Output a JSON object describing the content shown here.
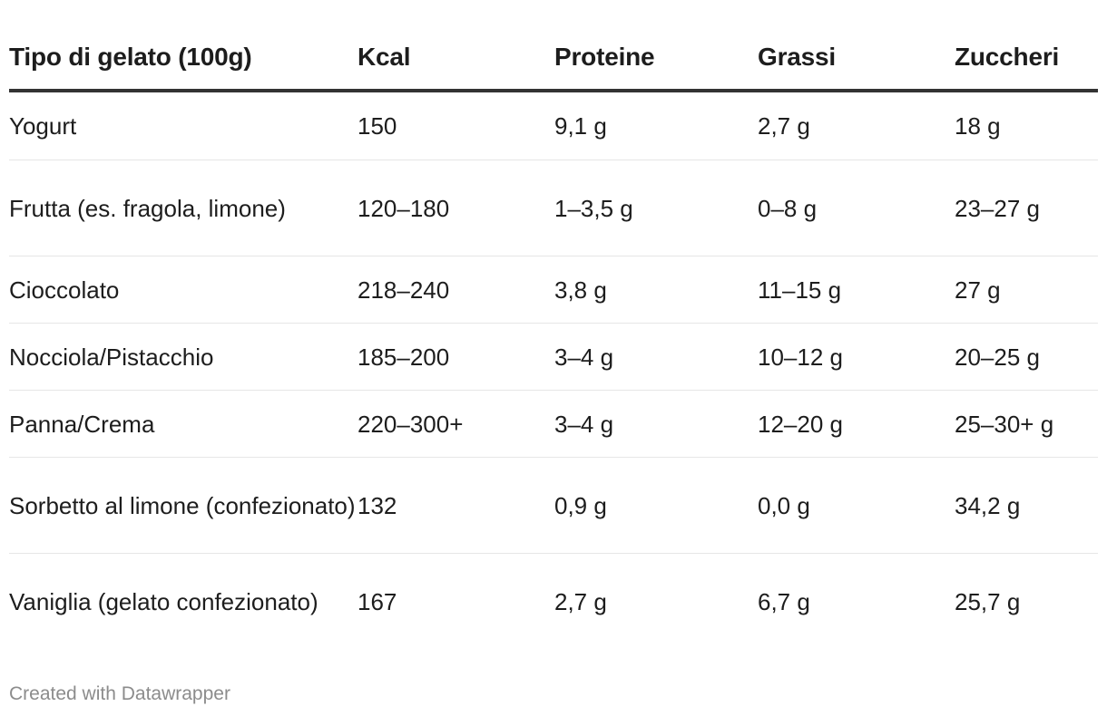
{
  "chart_data": {
    "type": "table",
    "columns": [
      "Tipo di gelato (100g)",
      "Kcal",
      "Proteine",
      "Grassi",
      "Zuccheri"
    ],
    "rows": [
      [
        "Yogurt",
        "150",
        "9,1 g",
        "2,7 g",
        "18 g"
      ],
      [
        "Frutta (es. fragola, limone)",
        "120–180",
        "1–3,5 g",
        "0–8 g",
        "23–27 g"
      ],
      [
        "Cioccolato",
        "218–240",
        "3,8 g",
        "11–15 g",
        "27 g"
      ],
      [
        "Nocciola/Pistacchio",
        "185–200",
        "3–4 g",
        "10–12 g",
        "20–25 g"
      ],
      [
        "Panna/Crema",
        "220–300+",
        "3–4 g",
        "12–20 g",
        "25–30+ g"
      ],
      [
        "Sorbetto al limone (confezionato)",
        "132",
        "0,9 g",
        "0,0 g",
        "34,2 g"
      ],
      [
        "Vaniglia (gelato confezionato)",
        "167",
        "2,7 g",
        "6,7 g",
        "25,7 g"
      ]
    ]
  },
  "footer": {
    "credit": "Created with Datawrapper"
  },
  "colors": {
    "text": "#1d1d1d",
    "header_rule": "#333333",
    "row_rule": "#e6e6e6",
    "credit": "#8c8c8c"
  }
}
